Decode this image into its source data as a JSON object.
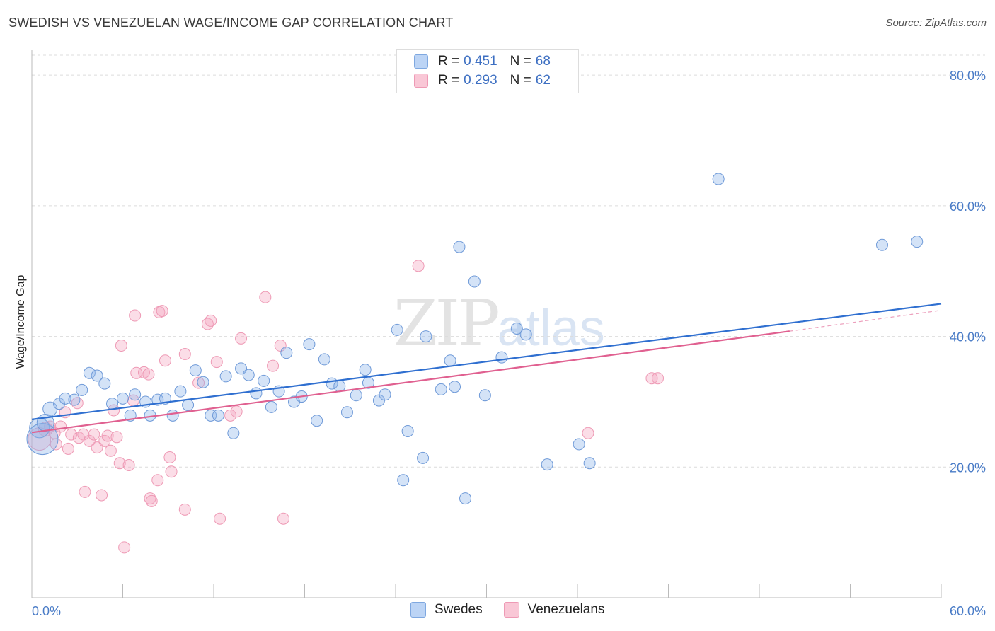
{
  "title": "SWEDISH VS VENEZUELAN WAGE/INCOME GAP CORRELATION CHART",
  "source": "Source: ZipAtlas.com",
  "watermark": {
    "zip": "ZIP",
    "atlas": "atlas"
  },
  "legend": {
    "rows": [
      {
        "r_label": "R =",
        "r_value": "0.451",
        "n_label": "N =",
        "n_value": "68"
      },
      {
        "r_label": "R =",
        "r_value": "0.293",
        "n_label": "N =",
        "n_value": "62"
      }
    ]
  },
  "chart_data": {
    "type": "scatter",
    "title": "SWEDISH VS VENEZUELAN WAGE/INCOME GAP CORRELATION CHART",
    "xlabel": "",
    "ylabel": "Wage/Income Gap",
    "xlim": [
      0,
      60
    ],
    "ylim": [
      0,
      85
    ],
    "x_tick_labels": [
      "0.0%",
      "60.0%"
    ],
    "y_ticks": [
      20,
      40,
      60,
      80
    ],
    "y_tick_labels": [
      "20.0%",
      "40.0%",
      "60.0%",
      "80.0%"
    ],
    "grid": true,
    "legend_position": "top-center",
    "colors": {
      "swedes": "#8fb6ea",
      "swedes_line": "#2f6fd0",
      "venezuelans": "#f4a6c0",
      "venezuelans_line": "#e06090"
    },
    "series": [
      {
        "name": "Swedes",
        "R": 0.451,
        "N": 68,
        "trend": {
          "x": [
            0,
            60
          ],
          "y": [
            27.3,
            45.0
          ]
        },
        "points": [
          [
            0.5,
            26.0,
            14
          ],
          [
            0.7,
            24.3,
            22
          ],
          [
            0.9,
            26.8,
            12
          ],
          [
            1.2,
            28.9,
            10
          ],
          [
            1.8,
            29.7,
            8
          ],
          [
            2.2,
            30.5,
            8
          ],
          [
            2.8,
            30.3,
            8
          ],
          [
            3.3,
            31.8,
            8
          ],
          [
            3.8,
            34.4,
            8
          ],
          [
            4.3,
            34.0,
            8
          ],
          [
            4.8,
            32.8,
            8
          ],
          [
            5.3,
            29.7,
            8
          ],
          [
            6.0,
            30.5,
            8
          ],
          [
            6.5,
            27.9,
            8
          ],
          [
            6.8,
            31.1,
            8
          ],
          [
            7.5,
            30.0,
            8
          ],
          [
            7.8,
            27.9,
            8
          ],
          [
            8.3,
            30.3,
            8
          ],
          [
            8.8,
            30.5,
            8
          ],
          [
            9.3,
            27.9,
            8
          ],
          [
            9.8,
            31.6,
            8
          ],
          [
            10.3,
            29.5,
            8
          ],
          [
            10.8,
            34.8,
            8
          ],
          [
            11.3,
            33.0,
            8
          ],
          [
            11.8,
            27.9,
            8
          ],
          [
            12.3,
            27.9,
            8
          ],
          [
            12.8,
            33.9,
            8
          ],
          [
            13.3,
            25.2,
            8
          ],
          [
            13.8,
            35.1,
            8
          ],
          [
            14.3,
            34.1,
            8
          ],
          [
            14.8,
            31.3,
            8
          ],
          [
            15.3,
            33.2,
            8
          ],
          [
            15.8,
            29.2,
            8
          ],
          [
            16.3,
            31.6,
            8
          ],
          [
            16.8,
            37.5,
            8
          ],
          [
            17.3,
            30.0,
            8
          ],
          [
            17.8,
            30.8,
            8
          ],
          [
            18.3,
            38.8,
            8
          ],
          [
            18.8,
            27.1,
            8
          ],
          [
            19.3,
            36.5,
            8
          ],
          [
            19.8,
            32.8,
            8
          ],
          [
            20.3,
            32.4,
            8
          ],
          [
            20.8,
            28.4,
            8
          ],
          [
            21.4,
            31.0,
            8
          ],
          [
            22.0,
            34.9,
            8
          ],
          [
            22.2,
            32.9,
            8
          ],
          [
            22.9,
            30.2,
            8
          ],
          [
            23.3,
            31.1,
            8
          ],
          [
            24.1,
            41.0,
            8
          ],
          [
            24.5,
            18.0,
            8
          ],
          [
            24.8,
            25.5,
            8
          ],
          [
            25.8,
            21.4,
            8
          ],
          [
            26.0,
            40.0,
            8
          ],
          [
            27.0,
            31.9,
            8
          ],
          [
            27.6,
            36.3,
            8
          ],
          [
            27.9,
            32.3,
            8
          ],
          [
            28.2,
            53.7,
            8
          ],
          [
            28.6,
            15.2,
            8
          ],
          [
            29.2,
            48.4,
            8
          ],
          [
            29.9,
            31.0,
            8
          ],
          [
            31.0,
            36.8,
            8
          ],
          [
            32.0,
            41.2,
            8
          ],
          [
            32.6,
            40.3,
            8
          ],
          [
            34.0,
            20.4,
            8
          ],
          [
            36.1,
            23.5,
            8
          ],
          [
            36.8,
            20.6,
            8
          ],
          [
            45.3,
            64.1,
            8
          ],
          [
            56.1,
            54.0,
            8
          ],
          [
            58.4,
            54.5,
            8
          ]
        ]
      },
      {
        "name": "Venezuelans",
        "R": 0.293,
        "N": 62,
        "trend": {
          "x": [
            0,
            50
          ],
          "y": [
            25.3,
            40.8
          ]
        },
        "trend_extension": {
          "x": [
            50,
            60
          ],
          "y": [
            40.8,
            44.0
          ]
        },
        "points": [
          [
            0.5,
            24.3,
            16
          ],
          [
            0.9,
            25.8,
            10
          ],
          [
            1.2,
            26.2,
            8
          ],
          [
            1.5,
            25.2,
            8
          ],
          [
            1.6,
            23.5,
            8
          ],
          [
            1.9,
            26.2,
            8
          ],
          [
            2.2,
            28.4,
            8
          ],
          [
            2.4,
            22.8,
            8
          ],
          [
            2.6,
            25.0,
            8
          ],
          [
            3.0,
            29.8,
            8
          ],
          [
            3.1,
            24.5,
            8
          ],
          [
            3.4,
            25.0,
            8
          ],
          [
            3.5,
            16.2,
            8
          ],
          [
            3.8,
            24.0,
            8
          ],
          [
            4.1,
            25.0,
            8
          ],
          [
            4.3,
            23.0,
            8
          ],
          [
            4.6,
            15.7,
            8
          ],
          [
            4.8,
            24.0,
            8
          ],
          [
            5.0,
            24.8,
            8
          ],
          [
            5.2,
            22.5,
            8
          ],
          [
            5.4,
            28.7,
            8
          ],
          [
            5.6,
            24.6,
            8
          ],
          [
            5.8,
            20.6,
            8
          ],
          [
            5.9,
            38.6,
            8
          ],
          [
            6.1,
            7.7,
            8
          ],
          [
            6.4,
            20.3,
            8
          ],
          [
            6.7,
            30.2,
            8
          ],
          [
            6.8,
            43.2,
            8
          ],
          [
            6.9,
            34.4,
            8
          ],
          [
            7.4,
            34.5,
            8
          ],
          [
            7.7,
            34.2,
            8
          ],
          [
            7.8,
            15.2,
            8
          ],
          [
            7.9,
            14.8,
            8
          ],
          [
            8.3,
            18.0,
            8
          ],
          [
            8.4,
            43.7,
            8
          ],
          [
            8.6,
            43.9,
            8
          ],
          [
            8.8,
            36.3,
            8
          ],
          [
            9.1,
            21.5,
            8
          ],
          [
            9.2,
            19.3,
            8
          ],
          [
            10.1,
            37.3,
            8
          ],
          [
            10.1,
            13.5,
            8
          ],
          [
            11.0,
            32.9,
            8
          ],
          [
            11.6,
            41.9,
            8
          ],
          [
            11.8,
            42.4,
            8
          ],
          [
            12.2,
            36.1,
            8
          ],
          [
            12.4,
            12.1,
            8
          ],
          [
            13.1,
            27.9,
            8
          ],
          [
            13.5,
            28.5,
            8
          ],
          [
            13.8,
            39.7,
            8
          ],
          [
            15.4,
            46.0,
            8
          ],
          [
            15.9,
            35.5,
            8
          ],
          [
            16.4,
            38.6,
            8
          ],
          [
            16.6,
            12.1,
            8
          ],
          [
            25.5,
            50.8,
            8
          ],
          [
            36.7,
            25.2,
            8
          ],
          [
            40.9,
            33.6,
            8
          ],
          [
            41.3,
            33.6,
            8
          ]
        ]
      }
    ]
  },
  "bottom_legend": [
    {
      "label": "Swedes"
    },
    {
      "label": "Venezuelans"
    }
  ]
}
